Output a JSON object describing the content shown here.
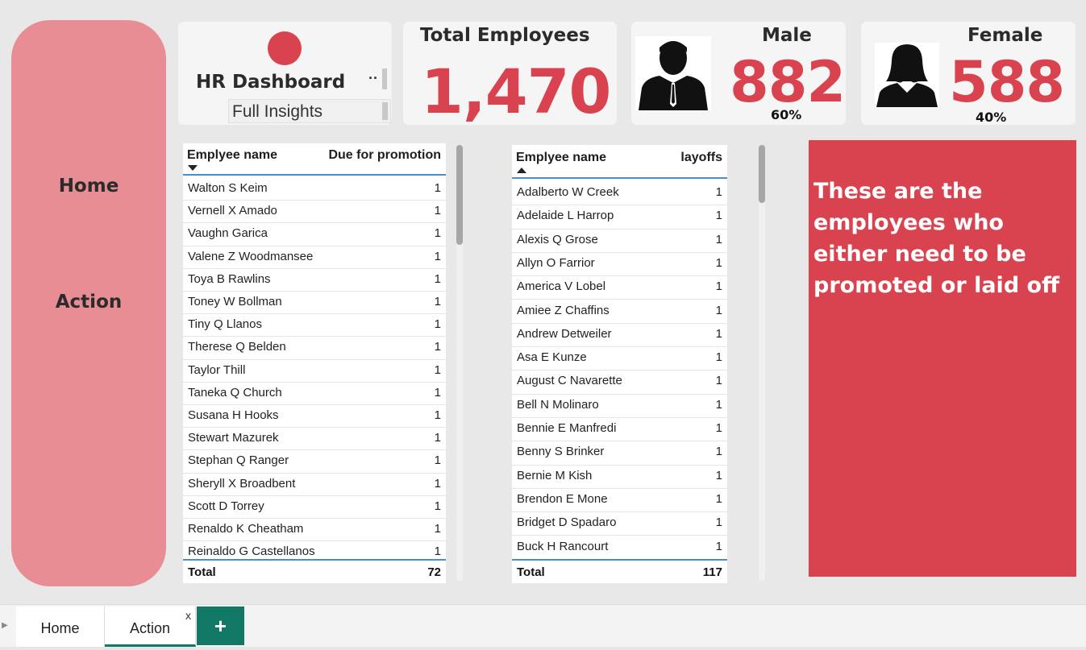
{
  "colors": {
    "accent": "#d9434f",
    "sidebar": "#e88d93",
    "tab_accent": "#117865"
  },
  "sidebar": {
    "home_label": "Home",
    "action_label": "Action"
  },
  "title_card": {
    "title": "HR Dashboard",
    "more": "··",
    "slicer_value": "Full Insights"
  },
  "kpis": {
    "total": {
      "label": "Total Employees",
      "value": "1,470"
    },
    "male": {
      "label": "Male",
      "value": "882",
      "percent": "60%",
      "icon": "male-user-icon"
    },
    "female": {
      "label": "Female",
      "value": "588",
      "percent": "40%",
      "icon": "female-user-icon"
    }
  },
  "promotion_table": {
    "col_name": "Emplyee name",
    "col_value": "Due for promotion",
    "sort": "descending",
    "rows": [
      [
        "Walton S Keim",
        "1"
      ],
      [
        "Vernell X Amado",
        "1"
      ],
      [
        "Vaughn Garica",
        "1"
      ],
      [
        "Valene Z Woodmansee",
        "1"
      ],
      [
        "Toya B Rawlins",
        "1"
      ],
      [
        "Toney W Bollman",
        "1"
      ],
      [
        "Tiny Q Llanos",
        "1"
      ],
      [
        "Therese Q Belden",
        "1"
      ],
      [
        "Taylor Thill",
        "1"
      ],
      [
        "Taneka Q Church",
        "1"
      ],
      [
        "Susana H Hooks",
        "1"
      ],
      [
        "Stewart Mazurek",
        "1"
      ],
      [
        "Stephan Q Ranger",
        "1"
      ],
      [
        "Sheryll X Broadbent",
        "1"
      ],
      [
        "Scott D Torrey",
        "1"
      ],
      [
        "Renaldo K Cheatham",
        "1"
      ],
      [
        "Reinaldo G Castellanos",
        "1"
      ]
    ],
    "total_label": "Total",
    "total_value": "72"
  },
  "layoffs_table": {
    "col_name": "Emplyee name",
    "col_value": "layoffs",
    "sort": "ascending",
    "rows": [
      [
        "Adalberto W Creek",
        "1"
      ],
      [
        "Adelaide L Harrop",
        "1"
      ],
      [
        "Alexis Q Grose",
        "1"
      ],
      [
        "Allyn O Farrior",
        "1"
      ],
      [
        "America V Lobel",
        "1"
      ],
      [
        "Amiee Z Chaffins",
        "1"
      ],
      [
        "Andrew Detweiler",
        "1"
      ],
      [
        "Asa E Kunze",
        "1"
      ],
      [
        "August C Navarette",
        "1"
      ],
      [
        "Bell N Molinaro",
        "1"
      ],
      [
        "Bennie E Manfredi",
        "1"
      ],
      [
        "Benny S Brinker",
        "1"
      ],
      [
        "Bernie M Kish",
        "1"
      ],
      [
        "Brendon E Mone",
        "1"
      ],
      [
        "Bridget D Spadaro",
        "1"
      ],
      [
        "Buck H Rancourt",
        "1"
      ]
    ],
    "total_label": "Total",
    "total_value": "117"
  },
  "note": {
    "text": "These are the employees who either need to be promoted or laid off"
  },
  "tabs": {
    "items": [
      "Home",
      "Action"
    ],
    "active": "Action",
    "close": "x",
    "add": "+"
  }
}
